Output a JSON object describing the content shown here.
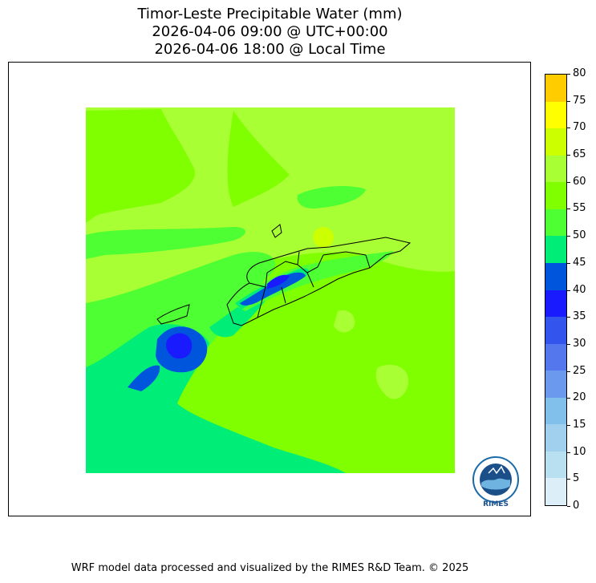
{
  "title": {
    "line1": "Timor-Leste Precipitable Water (mm)",
    "line2": "2026-04-06 09:00 @ UTC+00:00",
    "line3": "2026-04-06 18:00 @ Local Time"
  },
  "colorbar": {
    "labels": [
      "80",
      "75",
      "70",
      "65",
      "60",
      "55",
      "50",
      "45",
      "40",
      "35",
      "30",
      "25",
      "20",
      "15",
      "10",
      "5",
      "0"
    ],
    "colors": [
      "#ffcc00",
      "#ffff00",
      "#ccff00",
      "#a8ff33",
      "#80ff00",
      "#4dff33",
      "#00ee77",
      "#0055dd",
      "#1a1aff",
      "#3355ee",
      "#5577ee",
      "#6a99ee",
      "#80c0ea",
      "#a0d0ee",
      "#b8e0f0",
      "#dceef8"
    ]
  },
  "map": {
    "colors": {
      "green_55_60": "#80ff00",
      "green_60_65": "#a8ff33",
      "green_50_55": "#4dff33",
      "green_45_50": "#00ee77",
      "blue_40_45": "#0055dd",
      "blue_35_40": "#1a1aff",
      "yellow_65_70": "#ccff00"
    }
  },
  "logo": {
    "text": "RIMES",
    "ring_text": "Regional Integrated Multi-Hazard Early Warning System"
  },
  "footer": "WRF model data processed and visualized by the RIMES R&D Team. © 2025"
}
